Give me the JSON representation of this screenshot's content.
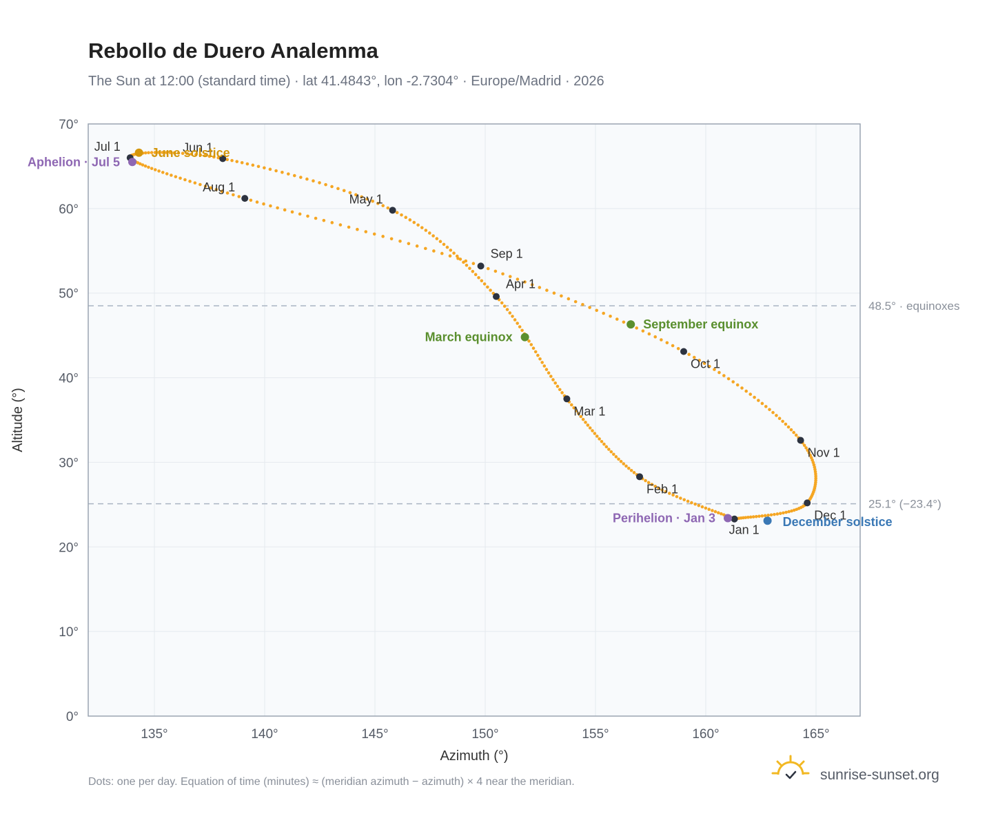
{
  "header": {
    "title": "Rebollo de Duero Analemma",
    "subtitle": "The Sun at 12:00 (standard time) · lat 41.4843°, lon -2.7304° · Europe/Madrid · 2026"
  },
  "footer": {
    "note": "Dots: one per day. Equation of time (minutes) ≈ (meridian azimuth − azimuth) × 4 near the meridian.",
    "brand": "sunrise-sunset.org",
    "brand_icon": "sunrise-logo-icon"
  },
  "colors": {
    "curve": "#f5a623",
    "month_dot": "#2d3340",
    "june_solstice": "#d4960c",
    "december_solstice": "#3a78b5",
    "equinox": "#5a8f2e",
    "apsis": "#8e67b3",
    "refline": "#a9b4c2",
    "plot_bg": "#f8fafc",
    "grid": "#e5e9ee",
    "frame": "#9aa4b1"
  },
  "chart_data": {
    "type": "scatter",
    "title": "Rebollo de Duero Analemma",
    "xlabel": "Azimuth (°)",
    "ylabel": "Altitude (°)",
    "xlim": [
      132,
      167
    ],
    "ylim": [
      0,
      70
    ],
    "x_ticks": [
      135,
      140,
      145,
      150,
      155,
      160,
      165
    ],
    "x_tick_labels": [
      "135°",
      "140°",
      "145°",
      "150°",
      "155°",
      "160°",
      "165°"
    ],
    "y_ticks": [
      0,
      10,
      20,
      30,
      40,
      50,
      60,
      70
    ],
    "y_tick_labels": [
      "0°",
      "10°",
      "20°",
      "30°",
      "40°",
      "50°",
      "60°",
      "70°"
    ],
    "grid": true,
    "legend": "none",
    "series": [
      {
        "path_months": [
          {
            "x": 161.3,
            "y": 23.3
          },
          {
            "x": 157.0,
            "y": 28.3
          },
          {
            "x": 153.7,
            "y": 37.5
          },
          {
            "x": 150.5,
            "y": 49.6
          },
          {
            "x": 145.8,
            "y": 59.8
          },
          {
            "x": 138.1,
            "y": 65.9
          },
          {
            "x": 133.9,
            "y": 66.0
          },
          {
            "x": 139.1,
            "y": 61.2
          },
          {
            "x": 149.8,
            "y": 53.2
          },
          {
            "x": 159.0,
            "y": 43.1
          },
          {
            "x": 164.3,
            "y": 32.6
          },
          {
            "x": 164.6,
            "y": 25.2
          },
          {
            "x": 161.3,
            "y": 23.3
          }
        ]
      }
    ],
    "month_markers": [
      {
        "label": "Jan 1",
        "x": 161.3,
        "y": 23.3,
        "pos": "below"
      },
      {
        "label": "Feb 1",
        "x": 157.0,
        "y": 28.3,
        "pos": "right-below"
      },
      {
        "label": "Mar 1",
        "x": 153.7,
        "y": 37.5,
        "pos": "right-below"
      },
      {
        "label": "Apr 1",
        "x": 150.5,
        "y": 49.6,
        "pos": "right-above"
      },
      {
        "label": "May 1",
        "x": 145.8,
        "y": 59.8,
        "pos": "left-above"
      },
      {
        "label": "Jun 1",
        "x": 138.1,
        "y": 65.9,
        "pos": "left-above"
      },
      {
        "label": "Jul 1",
        "x": 133.9,
        "y": 66.0,
        "pos": "left-above"
      },
      {
        "label": "Aug 1",
        "x": 139.1,
        "y": 61.2,
        "pos": "left-above"
      },
      {
        "label": "Sep 1",
        "x": 149.8,
        "y": 53.2,
        "pos": "right-above"
      },
      {
        "label": "Oct 1",
        "x": 159.0,
        "y": 43.1,
        "pos": "right-below"
      },
      {
        "label": "Nov 1",
        "x": 164.3,
        "y": 32.6,
        "pos": "right-below"
      },
      {
        "label": "Dec 1",
        "x": 164.6,
        "y": 25.2,
        "pos": "right-below"
      }
    ],
    "events": [
      {
        "label": "June solstice",
        "x": 134.3,
        "y": 66.6,
        "color": "#d4960c",
        "pos": "right"
      },
      {
        "label": "Aphelion · Jul 5",
        "x": 134.0,
        "y": 65.5,
        "color": "#8e67b3",
        "pos": "left"
      },
      {
        "label": "March equinox",
        "x": 151.8,
        "y": 44.8,
        "color": "#5a8f2e",
        "pos": "left"
      },
      {
        "label": "September equinox",
        "x": 156.6,
        "y": 46.3,
        "color": "#5a8f2e",
        "pos": "right"
      },
      {
        "label": "Perihelion · Jan 3",
        "x": 161.0,
        "y": 23.4,
        "color": "#8e67b3",
        "pos": "left"
      },
      {
        "label": "December solstice",
        "x": 162.8,
        "y": 23.1,
        "color": "#3a78b5",
        "pos": "right-below"
      }
    ],
    "reference_lines": [
      {
        "y": 48.5,
        "label": "48.5° · equinoxes"
      },
      {
        "y": 25.1,
        "label": "25.1° (−23.4°)"
      }
    ]
  }
}
